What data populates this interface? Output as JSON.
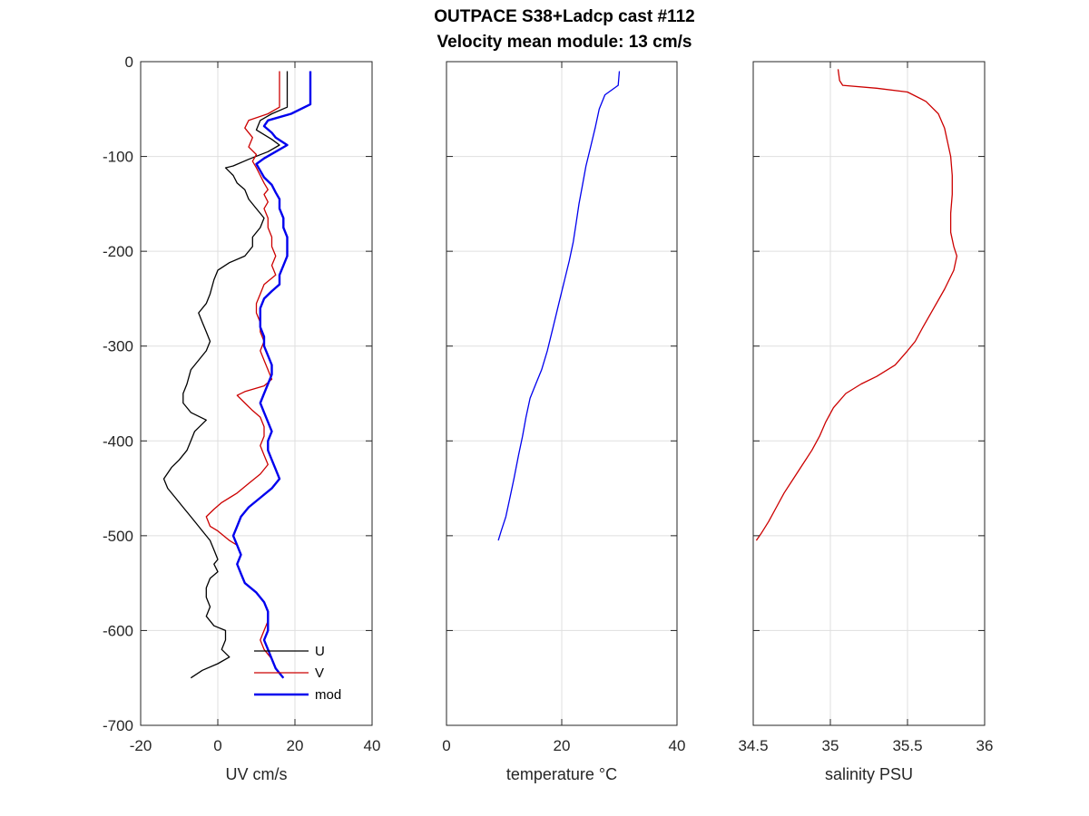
{
  "figure": {
    "title_line1": "OUTPACE S38+Ladcp cast #112",
    "title_line2": "Velocity mean module:  13 cm/s"
  },
  "chart_data": [
    {
      "type": "line",
      "xlabel": "UV cm/s",
      "ylabel": "",
      "xlim": [
        -20,
        40
      ],
      "ylim": [
        -700,
        0
      ],
      "xticks": [
        "-20",
        "0",
        "20",
        "40"
      ],
      "yticks": [
        "0",
        "-100",
        "-200",
        "-300",
        "-400",
        "-500",
        "-600",
        "-700"
      ],
      "grid": true,
      "legend": "bottom-right",
      "series": [
        {
          "name": "U",
          "color": "#000000",
          "points": [
            [
              18,
              -10
            ],
            [
              18,
              -48
            ],
            [
              14,
              -55
            ],
            [
              11,
              -62
            ],
            [
              10,
              -72
            ],
            [
              14,
              -82
            ],
            [
              16,
              -88
            ],
            [
              13,
              -95
            ],
            [
              8,
              -103
            ],
            [
              4,
              -110
            ],
            [
              2,
              -112
            ],
            [
              4,
              -120
            ],
            [
              5,
              -128
            ],
            [
              7,
              -135
            ],
            [
              8,
              -145
            ],
            [
              10,
              -155
            ],
            [
              12,
              -165
            ],
            [
              11,
              -175
            ],
            [
              9,
              -185
            ],
            [
              9,
              -195
            ],
            [
              7,
              -205
            ],
            [
              3,
              -212
            ],
            [
              0,
              -220
            ],
            [
              -1,
              -230
            ],
            [
              -2,
              -245
            ],
            [
              -3,
              -255
            ],
            [
              -5,
              -265
            ],
            [
              -4,
              -275
            ],
            [
              -3,
              -285
            ],
            [
              -2,
              -295
            ],
            [
              -3,
              -305
            ],
            [
              -5,
              -315
            ],
            [
              -7,
              -325
            ],
            [
              -8,
              -340
            ],
            [
              -9,
              -350
            ],
            [
              -9,
              -360
            ],
            [
              -7,
              -370
            ],
            [
              -3,
              -378
            ],
            [
              -6,
              -390
            ],
            [
              -7,
              -400
            ],
            [
              -8,
              -410
            ],
            [
              -10,
              -420
            ],
            [
              -12,
              -428
            ],
            [
              -14,
              -440
            ],
            [
              -13,
              -450
            ],
            [
              -11,
              -460
            ],
            [
              -9,
              -470
            ],
            [
              -7,
              -480
            ],
            [
              -4,
              -495
            ],
            [
              -2,
              -505
            ],
            [
              -1,
              -515
            ],
            [
              0,
              -525
            ],
            [
              -1,
              -530
            ],
            [
              0,
              -538
            ],
            [
              -2,
              -545
            ],
            [
              -3,
              -555
            ],
            [
              -3,
              -565
            ],
            [
              -2,
              -575
            ],
            [
              -3,
              -585
            ],
            [
              -1,
              -595
            ],
            [
              2,
              -600
            ],
            [
              2,
              -610
            ],
            [
              1,
              -620
            ],
            [
              3,
              -628
            ],
            [
              0,
              -635
            ],
            [
              -4,
              -642
            ],
            [
              -7,
              -650
            ]
          ]
        },
        {
          "name": "V",
          "color": "#cc0000",
          "points": [
            [
              16,
              -10
            ],
            [
              16,
              -48
            ],
            [
              13,
              -55
            ],
            [
              8,
              -62
            ],
            [
              7,
              -70
            ],
            [
              9,
              -80
            ],
            [
              8,
              -90
            ],
            [
              10,
              -98
            ],
            [
              9,
              -105
            ],
            [
              10,
              -112
            ],
            [
              11,
              -120
            ],
            [
              12,
              -128
            ],
            [
              13,
              -135
            ],
            [
              12,
              -140
            ],
            [
              13,
              -148
            ],
            [
              12,
              -155
            ],
            [
              13,
              -165
            ],
            [
              13,
              -175
            ],
            [
              14,
              -185
            ],
            [
              14,
              -195
            ],
            [
              15,
              -205
            ],
            [
              14,
              -215
            ],
            [
              15,
              -225
            ],
            [
              12,
              -235
            ],
            [
              11,
              -245
            ],
            [
              10,
              -255
            ],
            [
              10,
              -265
            ],
            [
              11,
              -275
            ],
            [
              11,
              -285
            ],
            [
              12,
              -295
            ],
            [
              11,
              -305
            ],
            [
              12,
              -315
            ],
            [
              13,
              -325
            ],
            [
              14,
              -335
            ],
            [
              12,
              -342
            ],
            [
              7,
              -348
            ],
            [
              5,
              -352
            ],
            [
              7,
              -360
            ],
            [
              9,
              -368
            ],
            [
              11,
              -375
            ],
            [
              12,
              -385
            ],
            [
              12,
              -395
            ],
            [
              11,
              -405
            ],
            [
              12,
              -415
            ],
            [
              13,
              -425
            ],
            [
              11,
              -435
            ],
            [
              8,
              -445
            ],
            [
              5,
              -455
            ],
            [
              1,
              -465
            ],
            [
              -1,
              -472
            ],
            [
              -3,
              -480
            ],
            [
              -2,
              -490
            ],
            [
              0,
              -495
            ],
            [
              3,
              -505
            ],
            [
              5,
              -510
            ],
            [
              6,
              -520
            ],
            [
              5,
              -530
            ],
            [
              6,
              -540
            ],
            [
              7,
              -550
            ],
            [
              10,
              -560
            ],
            [
              12,
              -570
            ],
            [
              13,
              -580
            ],
            [
              13,
              -590
            ],
            [
              12,
              -600
            ],
            [
              11,
              -610
            ],
            [
              12,
              -620
            ],
            [
              14,
              -630
            ],
            [
              15,
              -640
            ],
            [
              17,
              -650
            ]
          ]
        },
        {
          "name": "mod",
          "color": "#0000ee",
          "points": [
            [
              24,
              -10
            ],
            [
              24,
              -45
            ],
            [
              19,
              -55
            ],
            [
              13,
              -62
            ],
            [
              12,
              -68
            ],
            [
              14,
              -75
            ],
            [
              15,
              -80
            ],
            [
              18,
              -88
            ],
            [
              15,
              -95
            ],
            [
              12,
              -102
            ],
            [
              10,
              -108
            ],
            [
              11,
              -115
            ],
            [
              12,
              -122
            ],
            [
              14,
              -130
            ],
            [
              15,
              -138
            ],
            [
              16,
              -145
            ],
            [
              16,
              -155
            ],
            [
              17,
              -165
            ],
            [
              17,
              -175
            ],
            [
              18,
              -185
            ],
            [
              18,
              -195
            ],
            [
              18,
              -205
            ],
            [
              17,
              -215
            ],
            [
              16,
              -225
            ],
            [
              16,
              -235
            ],
            [
              14,
              -242
            ],
            [
              12,
              -250
            ],
            [
              11,
              -260
            ],
            [
              11,
              -270
            ],
            [
              11,
              -280
            ],
            [
              12,
              -290
            ],
            [
              12,
              -300
            ],
            [
              13,
              -310
            ],
            [
              14,
              -320
            ],
            [
              14,
              -330
            ],
            [
              13,
              -340
            ],
            [
              12,
              -350
            ],
            [
              11,
              -360
            ],
            [
              12,
              -370
            ],
            [
              13,
              -380
            ],
            [
              14,
              -390
            ],
            [
              13,
              -400
            ],
            [
              13,
              -410
            ],
            [
              14,
              -420
            ],
            [
              15,
              -430
            ],
            [
              16,
              -440
            ],
            [
              14,
              -450
            ],
            [
              11,
              -460
            ],
            [
              8,
              -470
            ],
            [
              6,
              -480
            ],
            [
              5,
              -490
            ],
            [
              4,
              -500
            ],
            [
              5,
              -510
            ],
            [
              6,
              -520
            ],
            [
              5,
              -530
            ],
            [
              6,
              -540
            ],
            [
              7,
              -550
            ],
            [
              10,
              -560
            ],
            [
              12,
              -570
            ],
            [
              13,
              -580
            ],
            [
              13,
              -590
            ],
            [
              13,
              -600
            ],
            [
              12,
              -610
            ],
            [
              13,
              -620
            ],
            [
              14,
              -630
            ],
            [
              15,
              -640
            ],
            [
              17,
              -650
            ]
          ]
        }
      ]
    },
    {
      "type": "line",
      "xlabel": "temperature °C",
      "ylabel": "",
      "xlim": [
        0,
        40
      ],
      "ylim": [
        -700,
        0
      ],
      "xticks": [
        "0",
        "20",
        "40"
      ],
      "grid": true,
      "series": [
        {
          "name": "",
          "color": "#0000ee",
          "points": [
            [
              30,
              -10
            ],
            [
              29.8,
              -25
            ],
            [
              27.5,
              -35
            ],
            [
              26.5,
              -50
            ],
            [
              25.8,
              -70
            ],
            [
              25,
              -90
            ],
            [
              24.2,
              -110
            ],
            [
              23.6,
              -130
            ],
            [
              23,
              -150
            ],
            [
              22.5,
              -170
            ],
            [
              22,
              -190
            ],
            [
              21.3,
              -210
            ],
            [
              20.5,
              -230
            ],
            [
              19.5,
              -255
            ],
            [
              18.5,
              -280
            ],
            [
              17.5,
              -305
            ],
            [
              16.5,
              -325
            ],
            [
              15.5,
              -340
            ],
            [
              14.5,
              -355
            ],
            [
              13.8,
              -375
            ],
            [
              13.2,
              -395
            ],
            [
              12.5,
              -415
            ],
            [
              11.7,
              -440
            ],
            [
              11,
              -460
            ],
            [
              10.3,
              -480
            ],
            [
              9.5,
              -495
            ],
            [
              9,
              -505
            ]
          ]
        }
      ]
    },
    {
      "type": "line",
      "xlabel": "salinity PSU",
      "ylabel": "",
      "xlim": [
        34.5,
        36
      ],
      "ylim": [
        -700,
        0
      ],
      "xticks": [
        "34.5",
        "35",
        "35.5",
        "36"
      ],
      "grid": true,
      "series": [
        {
          "name": "",
          "color": "#cc0000",
          "points": [
            [
              35.05,
              -8
            ],
            [
              35.06,
              -20
            ],
            [
              35.08,
              -25
            ],
            [
              35.3,
              -28
            ],
            [
              35.5,
              -32
            ],
            [
              35.62,
              -42
            ],
            [
              35.7,
              -55
            ],
            [
              35.74,
              -70
            ],
            [
              35.76,
              -85
            ],
            [
              35.78,
              -100
            ],
            [
              35.79,
              -120
            ],
            [
              35.79,
              -140
            ],
            [
              35.78,
              -160
            ],
            [
              35.78,
              -180
            ],
            [
              35.8,
              -195
            ],
            [
              35.82,
              -205
            ],
            [
              35.8,
              -220
            ],
            [
              35.74,
              -240
            ],
            [
              35.67,
              -260
            ],
            [
              35.6,
              -280
            ],
            [
              35.55,
              -295
            ],
            [
              35.5,
              -305
            ],
            [
              35.42,
              -320
            ],
            [
              35.3,
              -332
            ],
            [
              35.2,
              -340
            ],
            [
              35.1,
              -350
            ],
            [
              35.02,
              -365
            ],
            [
              34.97,
              -380
            ],
            [
              34.93,
              -395
            ],
            [
              34.88,
              -410
            ],
            [
              34.82,
              -425
            ],
            [
              34.76,
              -440
            ],
            [
              34.7,
              -455
            ],
            [
              34.65,
              -470
            ],
            [
              34.6,
              -485
            ],
            [
              34.55,
              -498
            ],
            [
              34.52,
              -505
            ]
          ]
        }
      ]
    }
  ]
}
